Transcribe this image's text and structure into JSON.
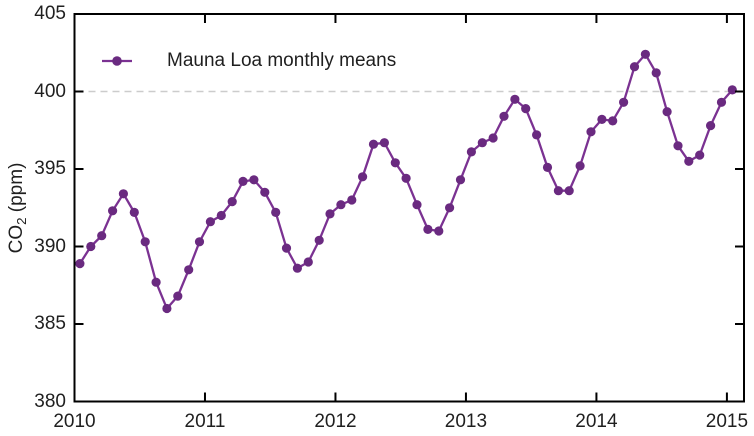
{
  "chart_data": {
    "type": "line",
    "title": "",
    "xlabel": "",
    "ylabel": "CO2 (ppm)",
    "ylabel_parts": {
      "prefix": "CO",
      "sub": "2",
      "suffix": " (ppm)"
    },
    "legend_position": "upper left inside",
    "xlim": [
      2010,
      2015.131
    ],
    "ylim": [
      380,
      405
    ],
    "x_ticks": [
      2010,
      2011,
      2012,
      2013,
      2014,
      2015
    ],
    "y_ticks": [
      380,
      385,
      390,
      395,
      400,
      405
    ],
    "grid": "off",
    "reference_line": {
      "y": 400,
      "style": "dashed"
    },
    "marker": "filled-circle",
    "colors": {
      "line": "#7b3292",
      "marker": "#6a2a80",
      "reference_line": "#cccccc",
      "text": "#1f1f1f",
      "axis": "#000000"
    },
    "series": [
      {
        "name": "Mauna Loa monthly means",
        "unit": "ppm",
        "frequency": "monthly",
        "start_month": "2010-01",
        "end_month": "2015-01",
        "values": [
          388.9,
          390.0,
          390.7,
          392.3,
          393.4,
          392.2,
          390.3,
          387.7,
          386.0,
          386.8,
          388.5,
          390.3,
          391.6,
          392.0,
          392.9,
          394.2,
          394.3,
          393.5,
          392.2,
          389.9,
          388.6,
          389.0,
          390.4,
          392.1,
          392.7,
          393.0,
          394.5,
          396.6,
          396.7,
          395.4,
          394.4,
          392.7,
          391.1,
          391.0,
          392.5,
          394.3,
          396.1,
          396.7,
          397.0,
          398.4,
          399.5,
          398.9,
          397.2,
          395.1,
          393.6,
          393.6,
          395.2,
          397.4,
          398.2,
          398.1,
          399.3,
          401.6,
          402.4,
          401.2,
          398.7,
          396.5,
          395.5,
          395.9,
          397.8,
          399.3,
          400.1
        ]
      }
    ]
  }
}
